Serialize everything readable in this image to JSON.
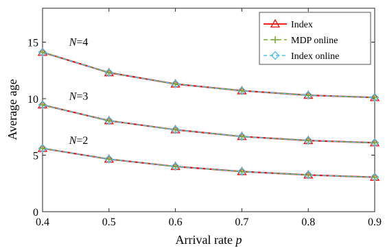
{
  "chart_data": {
    "type": "line",
    "xlabel": "Arrival rate",
    "xlabel_symbol": "p",
    "ylabel": "Average age",
    "xlim": [
      0.4,
      0.9
    ],
    "ylim": [
      0,
      18
    ],
    "x": [
      0.4,
      0.5,
      0.6,
      0.7,
      0.8,
      0.9
    ],
    "x_ticks": [
      "0.4",
      "0.5",
      "0.6",
      "0.7",
      "0.8",
      "0.9"
    ],
    "y_ticks": [
      "0",
      "5",
      "10",
      "15"
    ],
    "x_tick_values": [
      0.4,
      0.5,
      0.6,
      0.7,
      0.8,
      0.9
    ],
    "y_tick_values": [
      0,
      5,
      10,
      15
    ],
    "grid": false,
    "legend_position": "top-right",
    "legend": [
      {
        "name": "Index",
        "color": "#ff0000",
        "marker": "triangle"
      },
      {
        "name": "MDP online",
        "color": "#77ac30",
        "marker": "plus"
      },
      {
        "name": "Index online",
        "color": "#4dbeee",
        "marker": "diamond"
      }
    ],
    "groups": [
      {
        "label_var": "N",
        "label_eq": "=4",
        "x_at": 0.44,
        "y_at": 14.7,
        "values": [
          14.1,
          12.3,
          11.3,
          10.7,
          10.3,
          10.1
        ]
      },
      {
        "label_var": "N",
        "label_eq": "=3",
        "x_at": 0.44,
        "y_at": 9.9,
        "values": [
          9.45,
          8.05,
          7.25,
          6.65,
          6.3,
          6.1
        ]
      },
      {
        "label_var": "N",
        "label_eq": "=2",
        "x_at": 0.44,
        "y_at": 6.0,
        "values": [
          5.6,
          4.65,
          4.0,
          3.55,
          3.25,
          3.05
        ]
      }
    ]
  }
}
